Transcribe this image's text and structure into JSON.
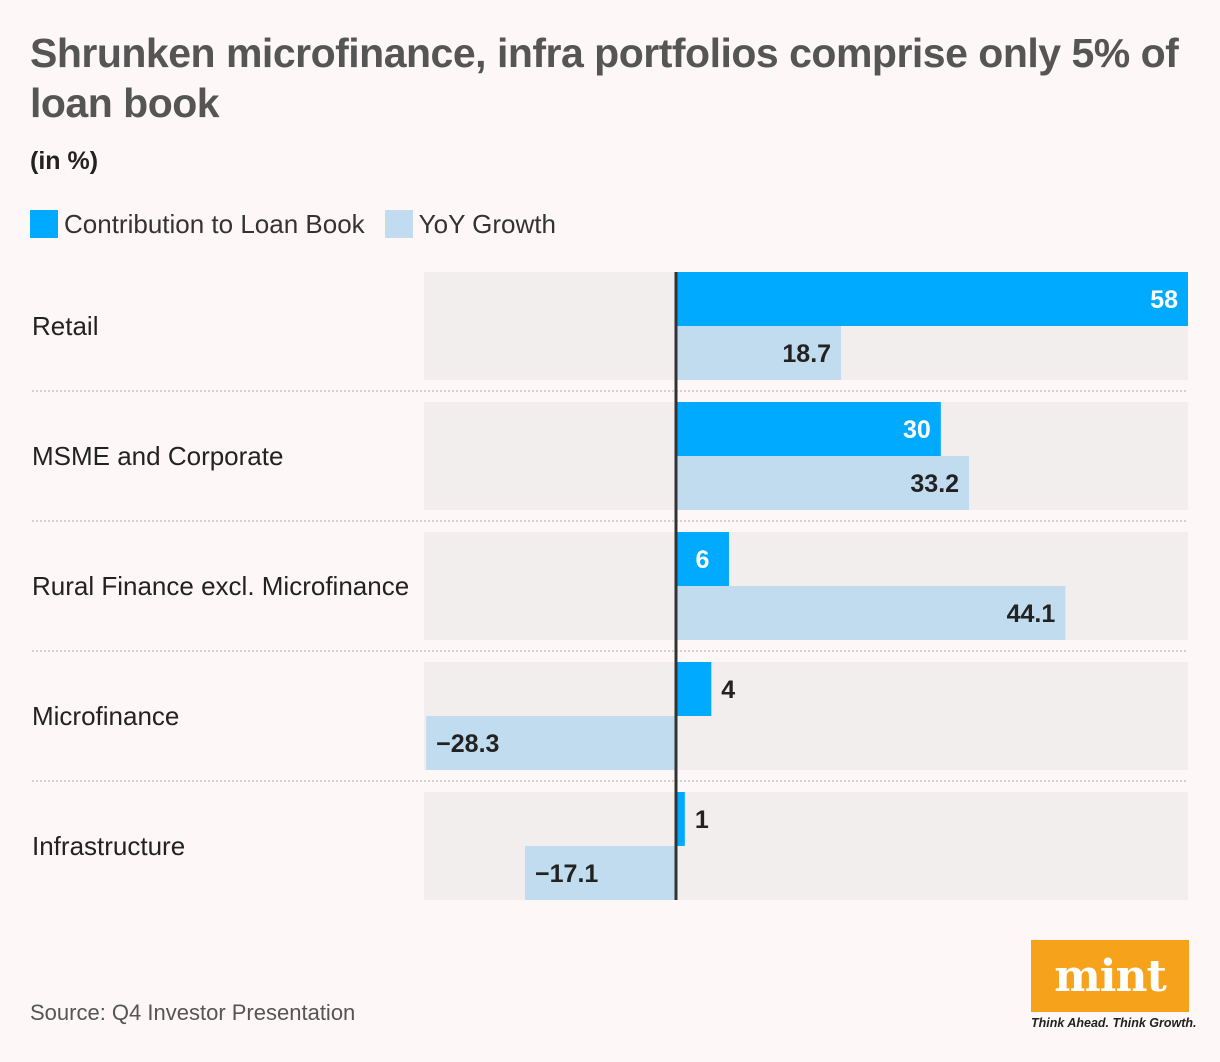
{
  "chart_data": {
    "type": "bar",
    "orientation": "horizontal",
    "title": "Shrunken microfinance, infra portfolios comprise only 5% of loan book",
    "subtitle": "(in %)",
    "categories": [
      "Retail",
      "MSME and Corporate",
      "Rural Finance excl. Microfinance",
      "Microfinance",
      "Infrastructure"
    ],
    "series": [
      {
        "name": "Contribution to Loan Book",
        "color": "#00aaff",
        "values": [
          58,
          30,
          6,
          4,
          1
        ],
        "labels": [
          "58",
          "30",
          "6",
          "4",
          "1"
        ]
      },
      {
        "name": "YoY Growth",
        "color": "#c0dcee",
        "values": [
          18.7,
          33.2,
          44.1,
          -28.3,
          -17.1
        ],
        "labels": [
          "18.7",
          "33.2",
          "44.1",
          "−28.3",
          "−17.1"
        ]
      }
    ],
    "xlim": [
      -28.3,
      58
    ],
    "legend": "top-left"
  },
  "source": "Source: Q4 Investor Presentation",
  "brand": {
    "logo_text": "mint",
    "tagline": "Think Ahead. Think Growth."
  },
  "colors": {
    "panel": "#f2eeee",
    "axis": "#333333",
    "divider": "#c8c4c4"
  }
}
